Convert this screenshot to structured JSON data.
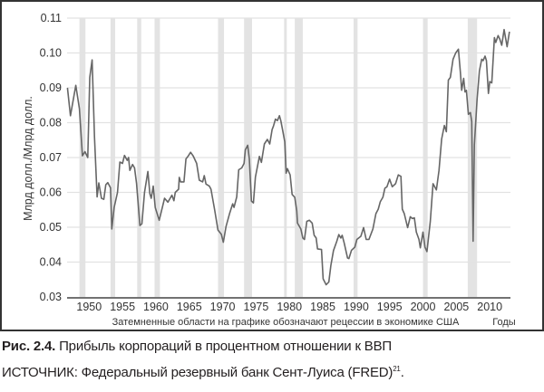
{
  "chart_data": {
    "type": "line",
    "ylabel": "Млрд долл./Млрд долл.",
    "xlabel": "Годы",
    "note": "Затемненные области на графике обозначают рецессии в экономике США",
    "ylim": [
      0.03,
      0.11
    ],
    "xlim": [
      1946.7,
      2013.1
    ],
    "yticks": [
      "0.03",
      "0.04",
      "0.05",
      "0.06",
      "0.07",
      "0.08",
      "0.09",
      "0.10",
      "0.11"
    ],
    "xticks": [
      "1950",
      "1955",
      "1960",
      "1965",
      "1970",
      "1975",
      "1980",
      "1985",
      "1990",
      "1995",
      "2000",
      "2005",
      "2010"
    ],
    "grid": "horizontal",
    "colors": {
      "line": "#666666",
      "recession": "#e3e3e3",
      "grid": "#e2e2e2"
    },
    "recessions": [
      [
        1948.55,
        1949.45
      ],
      [
        1953.2,
        1953.9
      ],
      [
        1957.2,
        1957.8
      ],
      [
        1959.8,
        1960.6
      ],
      [
        1969.3,
        1970.2
      ],
      [
        1973.2,
        1974.4
      ],
      [
        1979.2,
        1979.6
      ],
      [
        1980.8,
        1982.0
      ],
      [
        1989.6,
        1990.2
      ],
      [
        2000.0,
        2000.7
      ],
      [
        2006.7,
        2008.1
      ]
    ],
    "x": [
      1946.75,
      1947.2,
      1948.0,
      1948.55,
      1949.0,
      1949.37,
      1949.8,
      1950.1,
      1950.45,
      1950.8,
      1951.2,
      1951.45,
      1951.85,
      1952.2,
      1952.5,
      1952.8,
      1953.2,
      1953.4,
      1953.75,
      1954.25,
      1954.6,
      1955.0,
      1955.3,
      1955.7,
      1955.9,
      1956.1,
      1956.5,
      1956.8,
      1957.1,
      1957.6,
      1957.9,
      1958.3,
      1958.8,
      1959.1,
      1959.3,
      1959.6,
      1959.9,
      1960.5,
      1961.3,
      1961.8,
      1962.4,
      1962.7,
      1962.9,
      1963.4,
      1963.5,
      1963.7,
      1964.2,
      1964.5,
      1964.8,
      1965.2,
      1965.6,
      1966.1,
      1966.5,
      1967.0,
      1967.25,
      1967.5,
      1968.0,
      1968.25,
      1968.8,
      1969.3,
      1969.8,
      1970.1,
      1970.5,
      1971.05,
      1971.5,
      1971.7,
      1972.1,
      1972.4,
      1972.85,
      1973.2,
      1973.4,
      1973.75,
      1974.0,
      1974.3,
      1974.6,
      1974.9,
      1975.5,
      1975.8,
      1976.25,
      1976.7,
      1977.05,
      1977.4,
      1977.6,
      1977.9,
      1978.2,
      1978.5,
      1978.7,
      1979.0,
      1979.3,
      1979.5,
      1979.7,
      1980.1,
      1980.4,
      1980.8,
      1981.1,
      1981.2,
      1981.7,
      1982.0,
      1982.25,
      1982.6,
      1983.0,
      1983.4,
      1983.7,
      1984.0,
      1984.2,
      1984.8,
      1985.05,
      1985.5,
      1985.9,
      1986.2,
      1986.6,
      1987.1,
      1987.4,
      1987.7,
      1987.9,
      1988.2,
      1988.7,
      1988.9,
      1989.3,
      1989.8,
      1990.1,
      1990.7,
      1991.1,
      1991.5,
      1991.9,
      1992.5,
      1992.95,
      1993.3,
      1993.6,
      1994.0,
      1994.3,
      1994.6,
      1995.0,
      1995.4,
      1995.9,
      1996.3,
      1996.7,
      1996.9,
      1997.2,
      1997.7,
      1998.1,
      1998.4,
      1998.7,
      1999.0,
      1999.4,
      1999.6,
      2000.0,
      2000.3,
      2000.6,
      2001.1,
      2001.5,
      2002.0,
      2002.4,
      2002.8,
      2003.2,
      2003.5,
      2003.8,
      2004.1,
      2004.5,
      2004.9,
      2005.3,
      2005.6,
      2005.8,
      2006.1,
      2006.3,
      2006.5,
      2006.8,
      2007.1,
      2007.3,
      2007.5,
      2007.7,
      2008.1,
      2008.45,
      2008.8,
      2009.0,
      2009.3,
      2009.5,
      2009.8,
      2010.0,
      2010.3,
      2010.7,
      2010.9,
      2011.25,
      2011.5,
      2011.8,
      2012.15,
      2012.6,
      2012.95
    ],
    "y": [
      0.09,
      0.082,
      0.0907,
      0.084,
      0.0705,
      0.0717,
      0.07,
      0.093,
      0.098,
      0.076,
      0.0587,
      0.0627,
      0.0583,
      0.058,
      0.0622,
      0.0628,
      0.0613,
      0.0495,
      0.0557,
      0.06,
      0.0687,
      0.0683,
      0.0706,
      0.0692,
      0.07,
      0.0663,
      0.068,
      0.067,
      0.0626,
      0.0505,
      0.051,
      0.06,
      0.066,
      0.0596,
      0.0583,
      0.0618,
      0.0557,
      0.052,
      0.0583,
      0.0572,
      0.0592,
      0.0576,
      0.06,
      0.0609,
      0.0643,
      0.063,
      0.063,
      0.0696,
      0.0703,
      0.0715,
      0.0704,
      0.0683,
      0.0635,
      0.063,
      0.0648,
      0.0624,
      0.0618,
      0.0609,
      0.0549,
      0.0492,
      0.048,
      0.0457,
      0.0502,
      0.054,
      0.0567,
      0.0557,
      0.0587,
      0.0665,
      0.067,
      0.0683,
      0.0722,
      0.0735,
      0.0696,
      0.0575,
      0.057,
      0.0644,
      0.0703,
      0.0686,
      0.0739,
      0.0752,
      0.0739,
      0.078,
      0.079,
      0.081,
      0.0806,
      0.082,
      0.0806,
      0.0776,
      0.0745,
      0.0655,
      0.0668,
      0.065,
      0.0594,
      0.0586,
      0.0547,
      0.0512,
      0.0495,
      0.0469,
      0.0465,
      0.0517,
      0.052,
      0.0512,
      0.0477,
      0.0469,
      0.0438,
      0.0436,
      0.0352,
      0.0335,
      0.0343,
      0.039,
      0.0433,
      0.046,
      0.0479,
      0.0469,
      0.0477,
      0.0455,
      0.0412,
      0.041,
      0.0434,
      0.0443,
      0.0465,
      0.0474,
      0.0499,
      0.0465,
      0.0465,
      0.0495,
      0.0539,
      0.0552,
      0.0573,
      0.0586,
      0.0612,
      0.0616,
      0.0638,
      0.0616,
      0.0625,
      0.065,
      0.0646,
      0.0552,
      0.0539,
      0.0499,
      0.053,
      0.0525,
      0.0527,
      0.0486,
      0.0465,
      0.0441,
      0.0486,
      0.0443,
      0.043,
      0.0517,
      0.0625,
      0.0607,
      0.0663,
      0.0753,
      0.0792,
      0.0774,
      0.0922,
      0.093,
      0.0982,
      0.1,
      0.1011,
      0.0944,
      0.0893,
      0.0927,
      0.0888,
      0.0893,
      0.0824,
      0.0829,
      0.0803,
      0.046,
      0.0737,
      0.0867,
      0.0949,
      0.0982,
      0.0978,
      0.0991,
      0.0978,
      0.0884,
      0.0918,
      0.0914,
      0.1044,
      0.103,
      0.105,
      0.104,
      0.1022,
      0.1067,
      0.1018,
      0.1061
    ]
  },
  "caption": {
    "label": "Рис. 2.4.",
    "text": " Прибыль корпораций в процентном отношении к ВВП"
  },
  "source": {
    "text": "ИСТОЧНИК: Федеральный резервный банк Сент-Луиса (FRED)",
    "footnote": "21",
    "end": "."
  }
}
